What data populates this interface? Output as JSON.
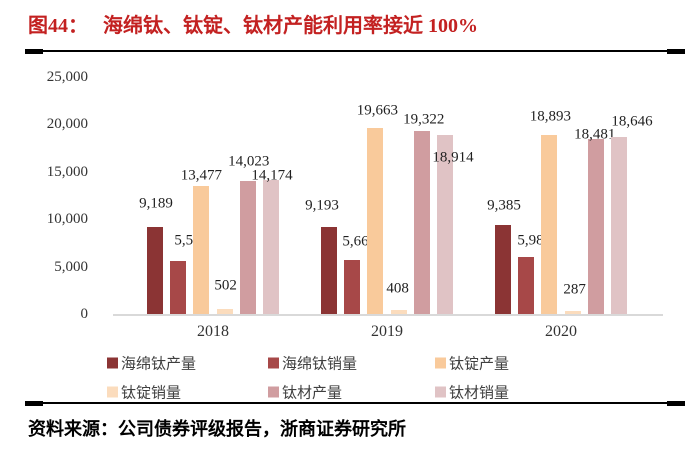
{
  "header": {
    "figure_label": "图44：",
    "title": "海绵钛、钛锭、钛材产能利用率接近 100%"
  },
  "chart_data": {
    "type": "bar",
    "title": "海绵钛、钛锭、钛材产能利用率接近 100%",
    "categories": [
      "2018",
      "2019",
      "2020"
    ],
    "series": [
      {
        "name": "海绵钛产量",
        "color": "#8b3434",
        "values": [
          9189,
          9193,
          9385
        ]
      },
      {
        "name": "海绵钛销量",
        "color": "#a74848",
        "values": [
          5564,
          5665,
          5984
        ]
      },
      {
        "name": "钛锭产量",
        "color": "#f9ca9b",
        "values": [
          13477,
          19663,
          18893
        ]
      },
      {
        "name": "钛锭销量",
        "color": "#fbdcbd",
        "values": [
          502,
          408,
          287
        ]
      },
      {
        "name": "钛材产量",
        "color": "#d09da0",
        "values": [
          14023,
          19322,
          18481
        ]
      },
      {
        "name": "钛材销量",
        "color": "#e0c3c5",
        "values": [
          14174,
          18914,
          18646
        ]
      }
    ],
    "xlabel": "",
    "ylabel": "",
    "ylim": [
      0,
      25000
    ],
    "ytick_step": 5000,
    "ytick_labels": [
      "0",
      "5,000",
      "10,000",
      "15,000",
      "20,000",
      "25,000"
    ],
    "grid": false,
    "data_labels": true,
    "legend_position": "bottom",
    "axis_line_color": "#d9d9d9"
  },
  "footer": {
    "source": "资料来源：公司债券评级报告，浙商证券研究所"
  }
}
